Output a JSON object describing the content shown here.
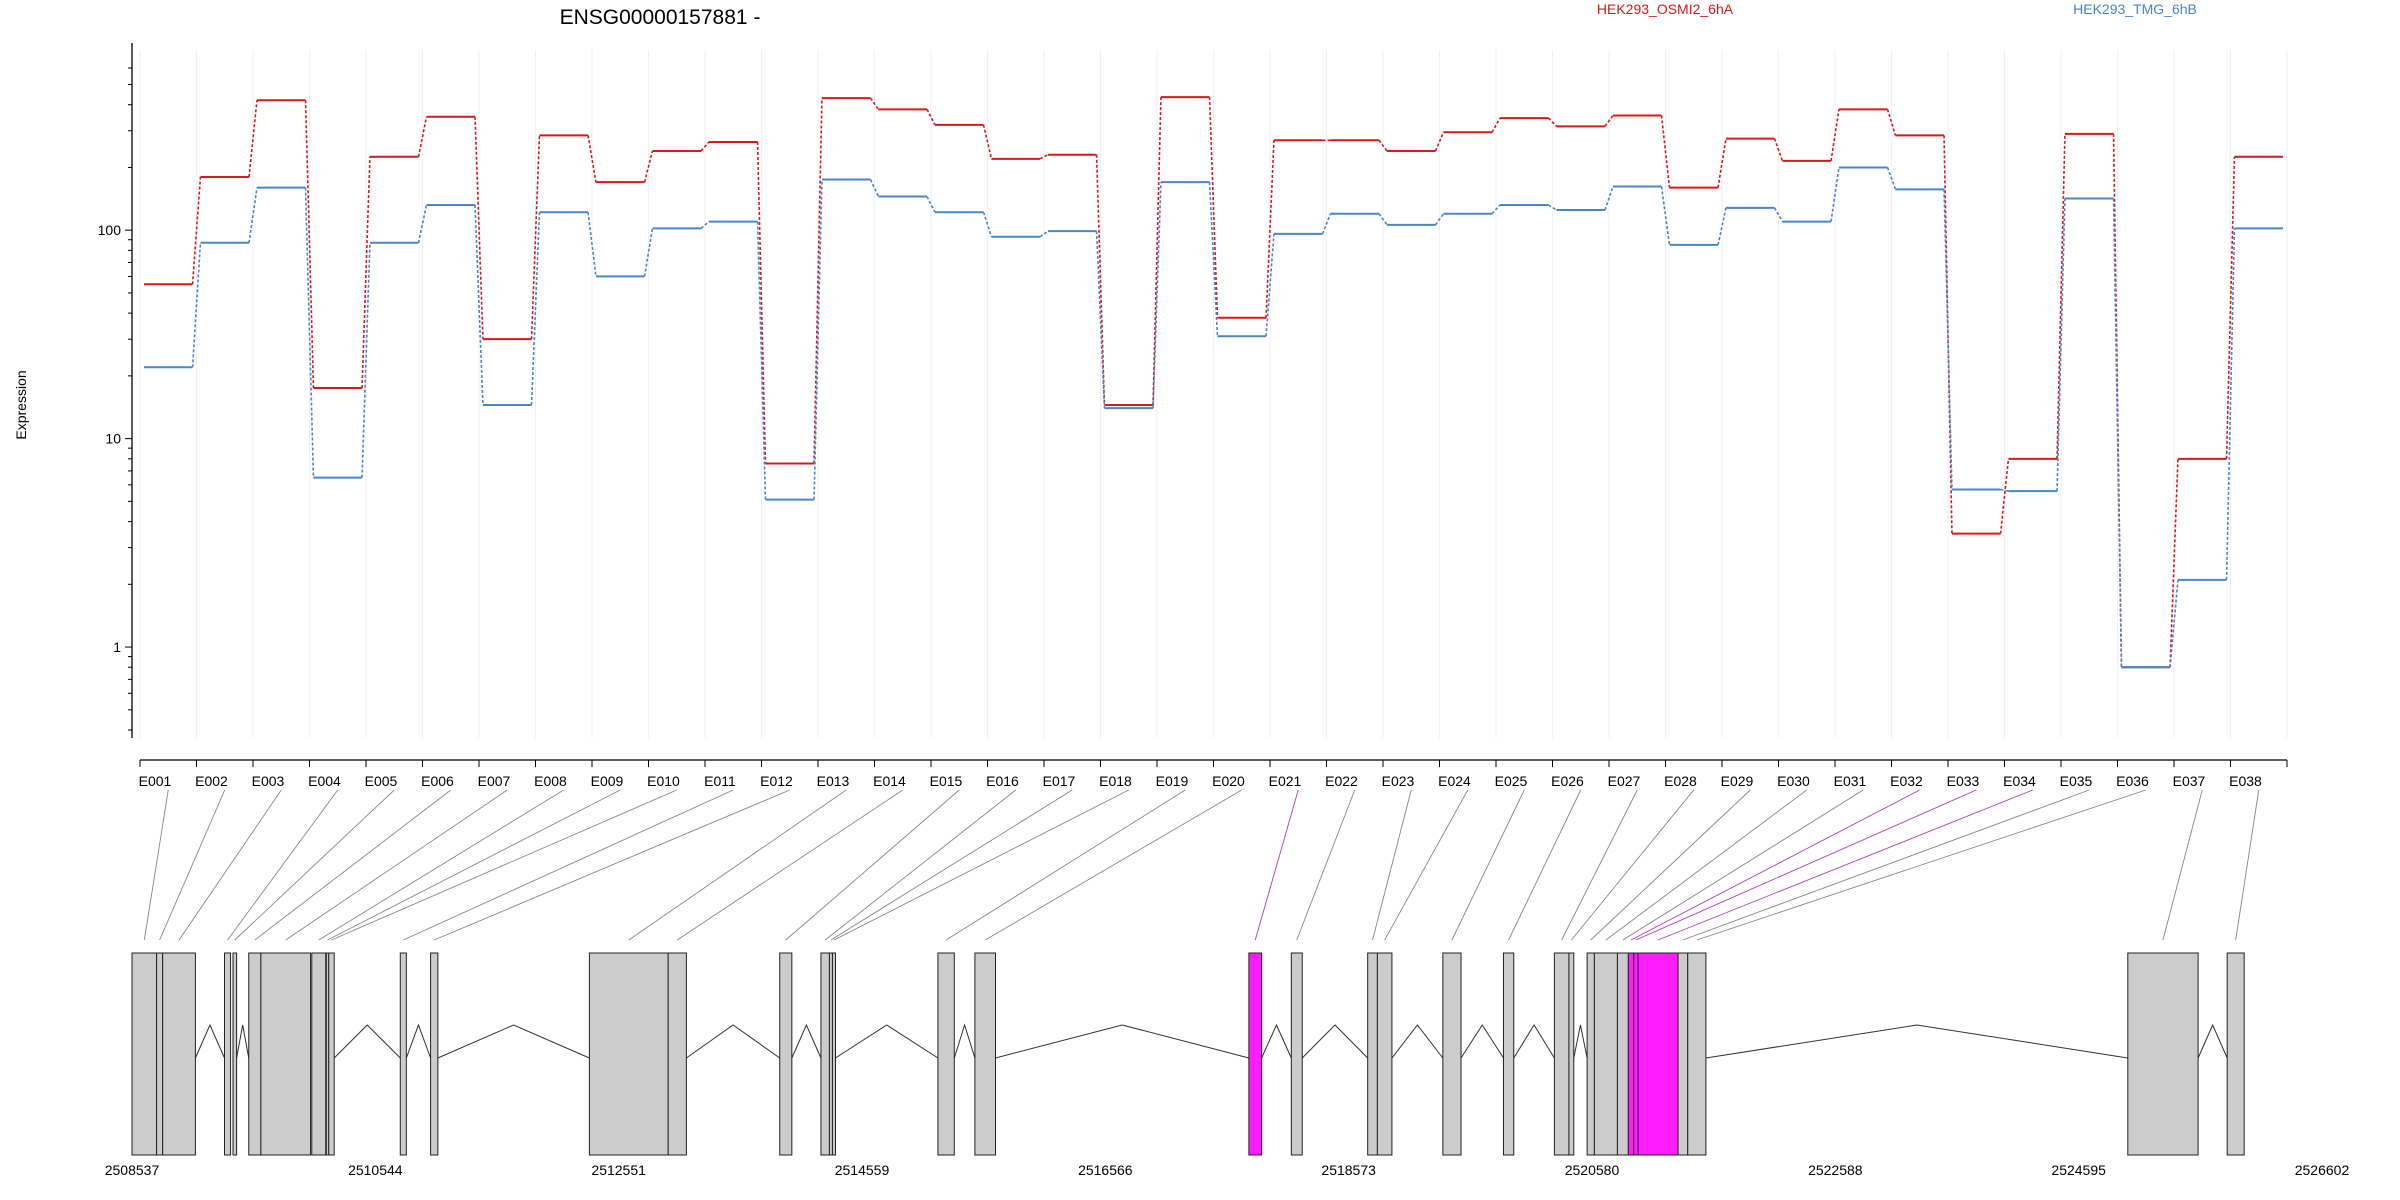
{
  "chart_data": {
    "type": "line",
    "title": "ENSG00000157881 -",
    "ylabel": "Expression",
    "xlabel": "",
    "y_scale": "log",
    "ylim": [
      0.4,
      600
    ],
    "y_ticks": [
      1,
      10,
      100
    ],
    "grid": false,
    "legend_position": "top",
    "categories": [
      "E001",
      "E002",
      "E003",
      "E004",
      "E005",
      "E006",
      "E007",
      "E008",
      "E009",
      "E010",
      "E011",
      "E012",
      "E013",
      "E014",
      "E015",
      "E016",
      "E017",
      "E018",
      "E019",
      "E020",
      "E021",
      "E022",
      "E023",
      "E024",
      "E025",
      "E026",
      "E027",
      "E028",
      "E029",
      "E030",
      "E031",
      "E032",
      "E033",
      "E034",
      "E035",
      "E036",
      "E037",
      "E038"
    ],
    "series": [
      {
        "name": "HEK293_OSMI2_6hA",
        "color": "#d7191c",
        "values": [
          55,
          180,
          420,
          17.5,
          225,
          350,
          30,
          285,
          170,
          240,
          265,
          7.6,
          430,
          380,
          320,
          220,
          230,
          14.5,
          435,
          38,
          270,
          270,
          240,
          295,
          345,
          315,
          355,
          160,
          275,
          215,
          380,
          285,
          3.5,
          8,
          290,
          0.8,
          8,
          225
        ]
      },
      {
        "name": "HEK293_TMG_6hB",
        "color": "#4a86c8",
        "values": [
          22,
          87,
          160,
          6.5,
          87,
          132,
          14.5,
          122,
          60,
          102,
          110,
          5.1,
          175,
          145,
          122,
          93,
          99,
          14,
          170,
          31,
          96,
          120,
          106,
          120,
          132,
          125,
          162,
          85,
          128,
          110,
          200,
          157,
          5.7,
          5.6,
          142,
          0.8,
          2.1,
          102
        ]
      }
    ],
    "genome_axis": {
      "tick_labels": [
        "2508537",
        "2510544",
        "2512551",
        "2514559",
        "2516566",
        "2518573",
        "2520580",
        "2522588",
        "2524595",
        "2526602"
      ],
      "highlighted_exons": [
        "E021",
        "E032",
        "E033",
        "E034"
      ],
      "highlight_color": "#ff1cff",
      "exon_color": "#cccccc"
    }
  }
}
